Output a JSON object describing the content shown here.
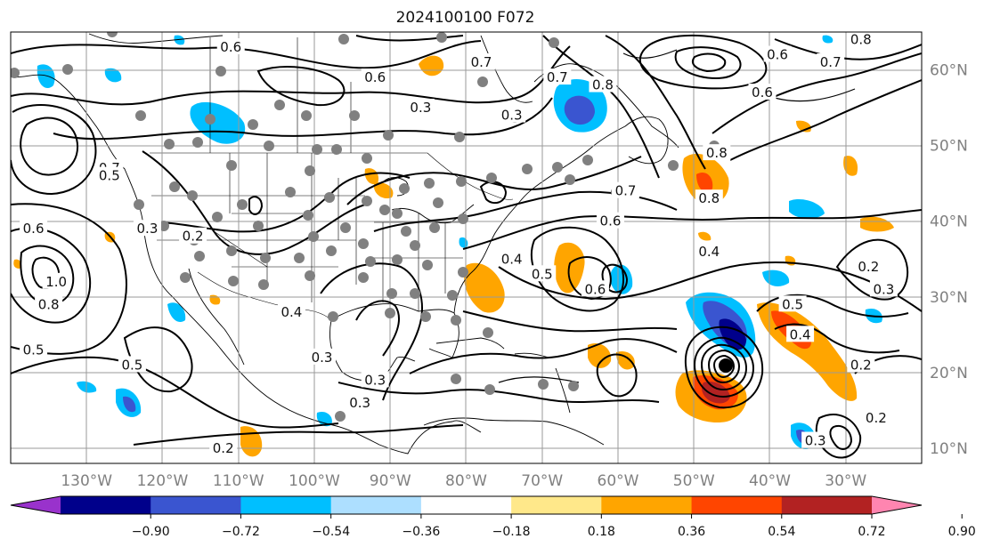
{
  "title": "2024100100 F072",
  "map": {
    "projection": "PlateCarree",
    "lon_range": [
      -140,
      -20
    ],
    "lat_range": [
      8,
      65
    ],
    "lon_ticks": [
      {
        "value": -130,
        "label": "130°W"
      },
      {
        "value": -120,
        "label": "120°W"
      },
      {
        "value": -110,
        "label": "110°W"
      },
      {
        "value": -100,
        "label": "100°W"
      },
      {
        "value": -90,
        "label": "90°W"
      },
      {
        "value": -80,
        "label": "80°W"
      },
      {
        "value": -70,
        "label": "70°W"
      },
      {
        "value": -60,
        "label": "60°W"
      },
      {
        "value": -50,
        "label": "50°W"
      },
      {
        "value": -40,
        "label": "40°W"
      },
      {
        "value": -30,
        "label": "30°W"
      }
    ],
    "lat_ticks": [
      {
        "value": 10,
        "label": "10°N"
      },
      {
        "value": 20,
        "label": "20°N"
      },
      {
        "value": 30,
        "label": "30°N"
      },
      {
        "value": 40,
        "label": "40°N"
      },
      {
        "value": 50,
        "label": "50°N"
      },
      {
        "value": 60,
        "label": "60°N"
      }
    ],
    "gridlines": true
  },
  "colorbar": {
    "orientation": "horizontal",
    "extend": "both",
    "colors": [
      "#9932CC",
      "#00008B",
      "#3A55D0",
      "#00BFFF",
      "#ADDFFF",
      "#FFFFFF",
      "#FFE88A",
      "#FFA500",
      "#FF4500",
      "#B22222",
      "#FF85B0"
    ],
    "tick_labels": [
      "−0.90",
      "−0.72",
      "−0.54",
      "−0.36",
      "−0.18",
      "0.18",
      "0.36",
      "0.54",
      "0.72",
      "0.90"
    ]
  },
  "contour_labels": [
    {
      "lon": -127,
      "lat": 47,
      "label": "0.7"
    },
    {
      "lon": -127,
      "lat": 46,
      "label": "0.5"
    },
    {
      "lon": -137,
      "lat": 39,
      "label": "0.6"
    },
    {
      "lon": -134,
      "lat": 32,
      "label": "1.0"
    },
    {
      "lon": -135,
      "lat": 29,
      "label": "0.8"
    },
    {
      "lon": -137,
      "lat": 23,
      "label": "0.5"
    },
    {
      "lon": -124,
      "lat": 21,
      "label": "0.5"
    },
    {
      "lon": -122,
      "lat": 39,
      "label": "0.3"
    },
    {
      "lon": -116,
      "lat": 38,
      "label": "0.2"
    },
    {
      "lon": -112,
      "lat": 10,
      "label": "0.2"
    },
    {
      "lon": -94,
      "lat": 16,
      "label": "0.3"
    },
    {
      "lon": -103,
      "lat": 28,
      "label": "0.4"
    },
    {
      "lon": -99,
      "lat": 22,
      "label": "0.3"
    },
    {
      "lon": -92,
      "lat": 19,
      "label": "0.3"
    },
    {
      "lon": -111,
      "lat": 63,
      "label": "0.6"
    },
    {
      "lon": -92,
      "lat": 59,
      "label": "0.6"
    },
    {
      "lon": -86,
      "lat": 55,
      "label": "0.3"
    },
    {
      "lon": -74,
      "lat": 54,
      "label": "0.3"
    },
    {
      "lon": -78,
      "lat": 61,
      "label": "0.7"
    },
    {
      "lon": -68,
      "lat": 59,
      "label": "0.7"
    },
    {
      "lon": -62,
      "lat": 58,
      "label": "0.8"
    },
    {
      "lon": -59,
      "lat": 44,
      "label": "0.7"
    },
    {
      "lon": -61,
      "lat": 40,
      "label": "0.6"
    },
    {
      "lon": -74,
      "lat": 35,
      "label": "0.4"
    },
    {
      "lon": -70,
      "lat": 33,
      "label": "0.5"
    },
    {
      "lon": -63,
      "lat": 31,
      "label": "0.6"
    },
    {
      "lon": -48,
      "lat": 36,
      "label": "0.4"
    },
    {
      "lon": -48,
      "lat": 43,
      "label": "0.8"
    },
    {
      "lon": -47,
      "lat": 49,
      "label": "0.8"
    },
    {
      "lon": -41,
      "lat": 57,
      "label": "0.6"
    },
    {
      "lon": -39,
      "lat": 62,
      "label": "0.6"
    },
    {
      "lon": -32,
      "lat": 61,
      "label": "0.7"
    },
    {
      "lon": -28,
      "lat": 64,
      "label": "0.8"
    },
    {
      "lon": -37,
      "lat": 29,
      "label": "0.5"
    },
    {
      "lon": -36,
      "lat": 25,
      "label": "0.4"
    },
    {
      "lon": -27,
      "lat": 34,
      "label": "0.2"
    },
    {
      "lon": -25,
      "lat": 31,
      "label": "0.3"
    },
    {
      "lon": -28,
      "lat": 21,
      "label": "0.2"
    },
    {
      "lon": -26,
      "lat": 14,
      "label": "0.2"
    },
    {
      "lon": -34,
      "lat": 11,
      "label": "0.3"
    }
  ]
}
